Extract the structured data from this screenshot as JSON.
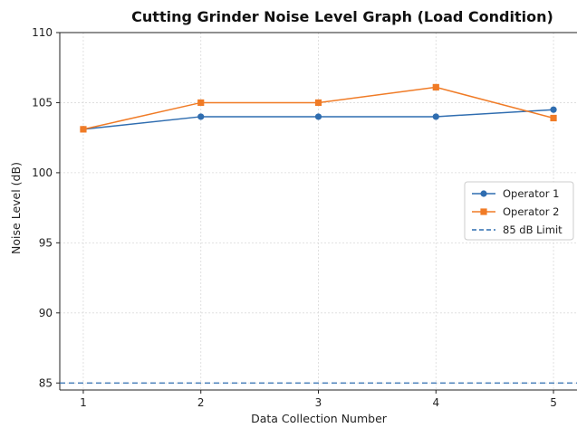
{
  "chart_data": {
    "type": "line",
    "title": "Cutting Grinder Noise Level Graph (Load Condition)",
    "xlabel": "Data Collection Number",
    "ylabel": "Noise Level (dB)",
    "x": [
      1,
      2,
      3,
      4,
      5
    ],
    "x_ticks": [
      "1",
      "2",
      "3",
      "4",
      "5"
    ],
    "xlim": [
      0.8,
      5.2
    ],
    "ylim": [
      84.5,
      110
    ],
    "y_ticks": [
      85,
      90,
      95,
      100,
      105,
      110
    ],
    "grid": true,
    "legend_position": "center-right",
    "series": [
      {
        "name": "Operator 1",
        "values": [
          103.1,
          104.0,
          104.0,
          104.0,
          104.5
        ],
        "color": "#2f6db0",
        "marker": "circle",
        "style": "solid"
      },
      {
        "name": "Operator 2",
        "values": [
          103.1,
          105.0,
          105.0,
          106.1,
          103.9
        ],
        "color": "#f07b26",
        "marker": "square",
        "style": "solid"
      }
    ],
    "reference_lines": [
      {
        "name": "85 dB Limit",
        "y": 85,
        "color": "#2f6db0",
        "style": "dashed"
      }
    ]
  }
}
